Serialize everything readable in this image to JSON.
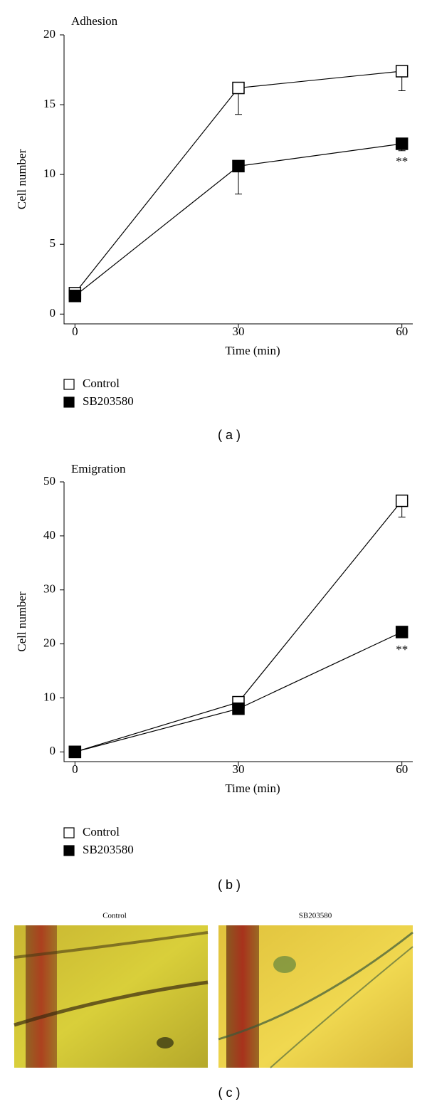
{
  "chart_data": [
    {
      "type": "line",
      "title": "Adhesion",
      "x_label": "Time (min)",
      "y_label": "Cell number",
      "x": [
        0,
        30,
        60
      ],
      "xlim": [
        -2,
        62
      ],
      "xticks": [
        0,
        30,
        60
      ],
      "ylim": [
        -0.7,
        20
      ],
      "yticks": [
        0,
        5,
        10,
        15,
        20
      ],
      "series": [
        {
          "name": "Control",
          "color": "#ffffff",
          "values": [
            1.5,
            16.2,
            17.4
          ],
          "errors": [
            0,
            1.9,
            1.4
          ]
        },
        {
          "name": "SB203580",
          "color": "#000000",
          "values": [
            1.3,
            10.6,
            12.2
          ],
          "errors": [
            0,
            2.0,
            0.5
          ]
        }
      ],
      "annotation": "**",
      "caption": "( a )"
    },
    {
      "type": "line",
      "title": "Emigration",
      "x_label": "Time (min)",
      "y_label": "Cell number",
      "x": [
        0,
        30,
        60
      ],
      "xlim": [
        -2,
        62
      ],
      "xticks": [
        0,
        30,
        60
      ],
      "ylim": [
        -1.8,
        50
      ],
      "yticks": [
        0,
        10,
        20,
        30,
        40,
        50
      ],
      "series": [
        {
          "name": "Control",
          "color": "#ffffff",
          "values": [
            0,
            9.2,
            46.5
          ],
          "errors": [
            0,
            0.6,
            3.0
          ]
        },
        {
          "name": "SB203580",
          "color": "#000000",
          "values": [
            0,
            8,
            22.2
          ],
          "errors": [
            0,
            0.3,
            0.5
          ]
        }
      ],
      "annotation": "**",
      "caption": "( b )"
    }
  ],
  "images": {
    "labels": [
      "Control",
      "SB203580"
    ],
    "caption": "( c )"
  }
}
